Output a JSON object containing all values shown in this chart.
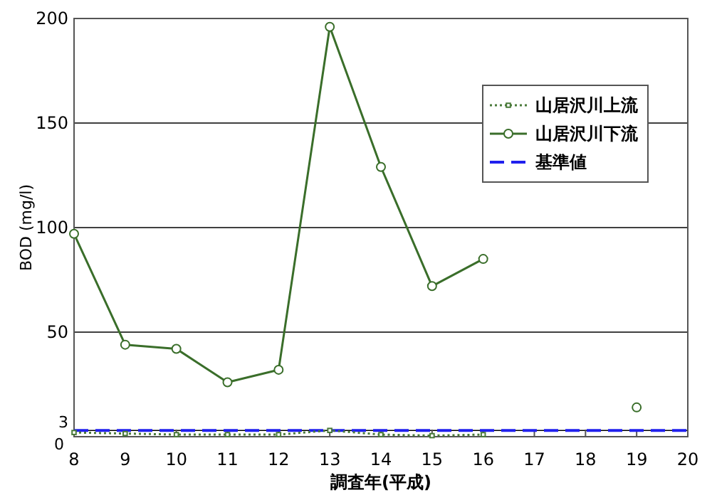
{
  "chart_data": {
    "type": "line",
    "xlabel": "調査年(平成)",
    "ylabel": "BOD (mg/l)",
    "series": [
      {
        "name": "山居沢川上流",
        "color": "#4a7a3a",
        "marker": "square",
        "line_style": "dotted",
        "x": [
          8,
          9,
          10,
          11,
          12,
          13,
          14,
          15,
          16
        ],
        "values": [
          2,
          1.5,
          1,
          1,
          1,
          3,
          1,
          0.5,
          1
        ]
      },
      {
        "name": "山居沢川下流",
        "color": "#3a6e2a",
        "marker": "circle",
        "line_style": "solid",
        "x": [
          8,
          9,
          10,
          11,
          12,
          13,
          14,
          15,
          16
        ],
        "values": [
          97,
          44,
          42,
          26,
          32,
          196,
          129,
          72,
          85
        ]
      },
      {
        "type": "scatter",
        "color": "#3a6e2a",
        "marker": "circle",
        "x": [
          19
        ],
        "values": [
          14
        ]
      }
    ],
    "ref_lines": [
      {
        "axis": "y",
        "value": 3,
        "label": "基準値",
        "color": "#2020ee",
        "line_style": "dashed"
      }
    ],
    "xlim": [
      8,
      20
    ],
    "xticks": [
      8,
      9,
      10,
      11,
      12,
      13,
      14,
      15,
      16,
      17,
      18,
      19,
      20
    ],
    "ylim": [
      0,
      200
    ],
    "yticks": [
      0,
      3,
      50,
      100,
      150,
      200
    ],
    "grid": "y",
    "legend": "top right"
  }
}
